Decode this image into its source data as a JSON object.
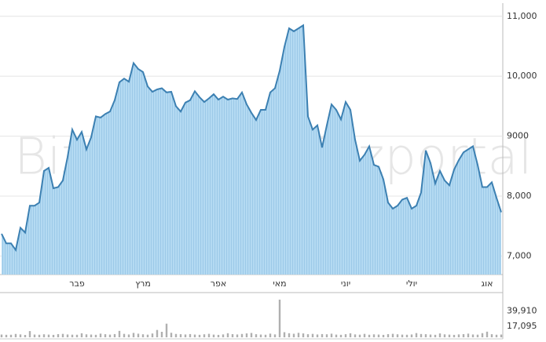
{
  "chart_data": {
    "type": "area",
    "watermark": "Bizportal",
    "categories": [
      null,
      null,
      null,
      null,
      null,
      null,
      null,
      null,
      null,
      null,
      null,
      null,
      null,
      null,
      null,
      null,
      "פבר",
      null,
      null,
      null,
      null,
      null,
      null,
      null,
      null,
      null,
      null,
      null,
      null,
      null,
      "מרץ",
      null,
      null,
      null,
      null,
      null,
      null,
      null,
      null,
      null,
      null,
      null,
      null,
      null,
      null,
      null,
      "אפר",
      null,
      null,
      null,
      null,
      null,
      null,
      null,
      null,
      null,
      null,
      null,
      null,
      "מאי",
      null,
      null,
      null,
      null,
      null,
      null,
      null,
      null,
      null,
      null,
      null,
      null,
      null,
      "יוני",
      null,
      null,
      null,
      null,
      null,
      null,
      null,
      null,
      null,
      null,
      null,
      null,
      null,
      "יולי",
      null,
      null,
      null,
      null,
      null,
      null,
      null,
      null,
      null,
      null,
      null,
      null,
      null,
      null,
      null,
      "אוג",
      null,
      null,
      null
    ],
    "values": [
      7370,
      7210,
      7210,
      7100,
      7470,
      7390,
      7840,
      7840,
      7890,
      8420,
      8470,
      8130,
      8150,
      8260,
      8650,
      9110,
      8940,
      9070,
      8780,
      8980,
      9330,
      9310,
      9370,
      9410,
      9600,
      9900,
      9960,
      9910,
      10220,
      10120,
      10070,
      9830,
      9740,
      9780,
      9800,
      9730,
      9740,
      9500,
      9410,
      9560,
      9600,
      9750,
      9650,
      9570,
      9630,
      9700,
      9610,
      9660,
      9610,
      9630,
      9620,
      9730,
      9530,
      9390,
      9270,
      9440,
      9440,
      9730,
      9800,
      10090,
      10490,
      10800,
      10750,
      10800,
      10850,
      9330,
      9110,
      9180,
      8810,
      9180,
      9530,
      9440,
      9280,
      9570,
      9440,
      8940,
      8590,
      8690,
      8830,
      8520,
      8490,
      8280,
      7890,
      7790,
      7840,
      7940,
      7970,
      7790,
      7840,
      8060,
      8760,
      8550,
      8210,
      8420,
      8260,
      8180,
      8440,
      8600,
      8730,
      8780,
      8830,
      8520,
      8150,
      8150,
      8230,
      7970,
      7730
    ],
    "color": "#3c80b2",
    "fill": "#a8d3ef",
    "ylim": [
      6690,
      11220
    ],
    "yticks": [
      {
        "value": 7000,
        "label": "7,000"
      },
      {
        "value": 8000,
        "label": "8,000"
      },
      9000,
      {
        "value": 10000,
        "label": "10,000"
      },
      {
        "value": 11000,
        "label": "11,000"
      }
    ],
    "grid": true,
    "volume": [
      4200,
      3800,
      3900,
      5100,
      4400,
      3600,
      9500,
      4200,
      3900,
      4600,
      4100,
      3700,
      4800,
      5200,
      4300,
      4000,
      3900,
      6100,
      4500,
      4200,
      3800,
      5600,
      4700,
      4100,
      4900,
      9800,
      5200,
      4300,
      6700,
      5500,
      4600,
      4000,
      5800,
      11200,
      8400,
      20800,
      6900,
      5100,
      4700,
      4300,
      4900,
      4200,
      3800,
      4600,
      5300,
      4100,
      3700,
      4400,
      6200,
      4800,
      4300,
      5100,
      5900,
      6600,
      4700,
      4200,
      3900,
      5600,
      4400,
      57600,
      7800,
      6200,
      5400,
      6800,
      5900,
      4700,
      5200,
      4300,
      4900,
      4600,
      5500,
      4100,
      3800,
      4700,
      6100,
      4400,
      4000,
      5200,
      3900,
      4500,
      4200,
      3700,
      4800,
      5300,
      4600,
      4100,
      3900,
      4300,
      6400,
      5000,
      4700,
      4200,
      3800,
      5900,
      4500,
      4100,
      3700,
      4400,
      4800,
      5600,
      4300,
      4000,
      6300,
      8600,
      4700,
      3900,
      4200
    ],
    "volume_color": "#b0b0b0",
    "volume_lim": [
      0,
      60000
    ],
    "volume_ticks": [
      {
        "value": 39910,
        "label": "39,910"
      },
      {
        "value": 17095,
        "label": "17,095"
      }
    ]
  }
}
